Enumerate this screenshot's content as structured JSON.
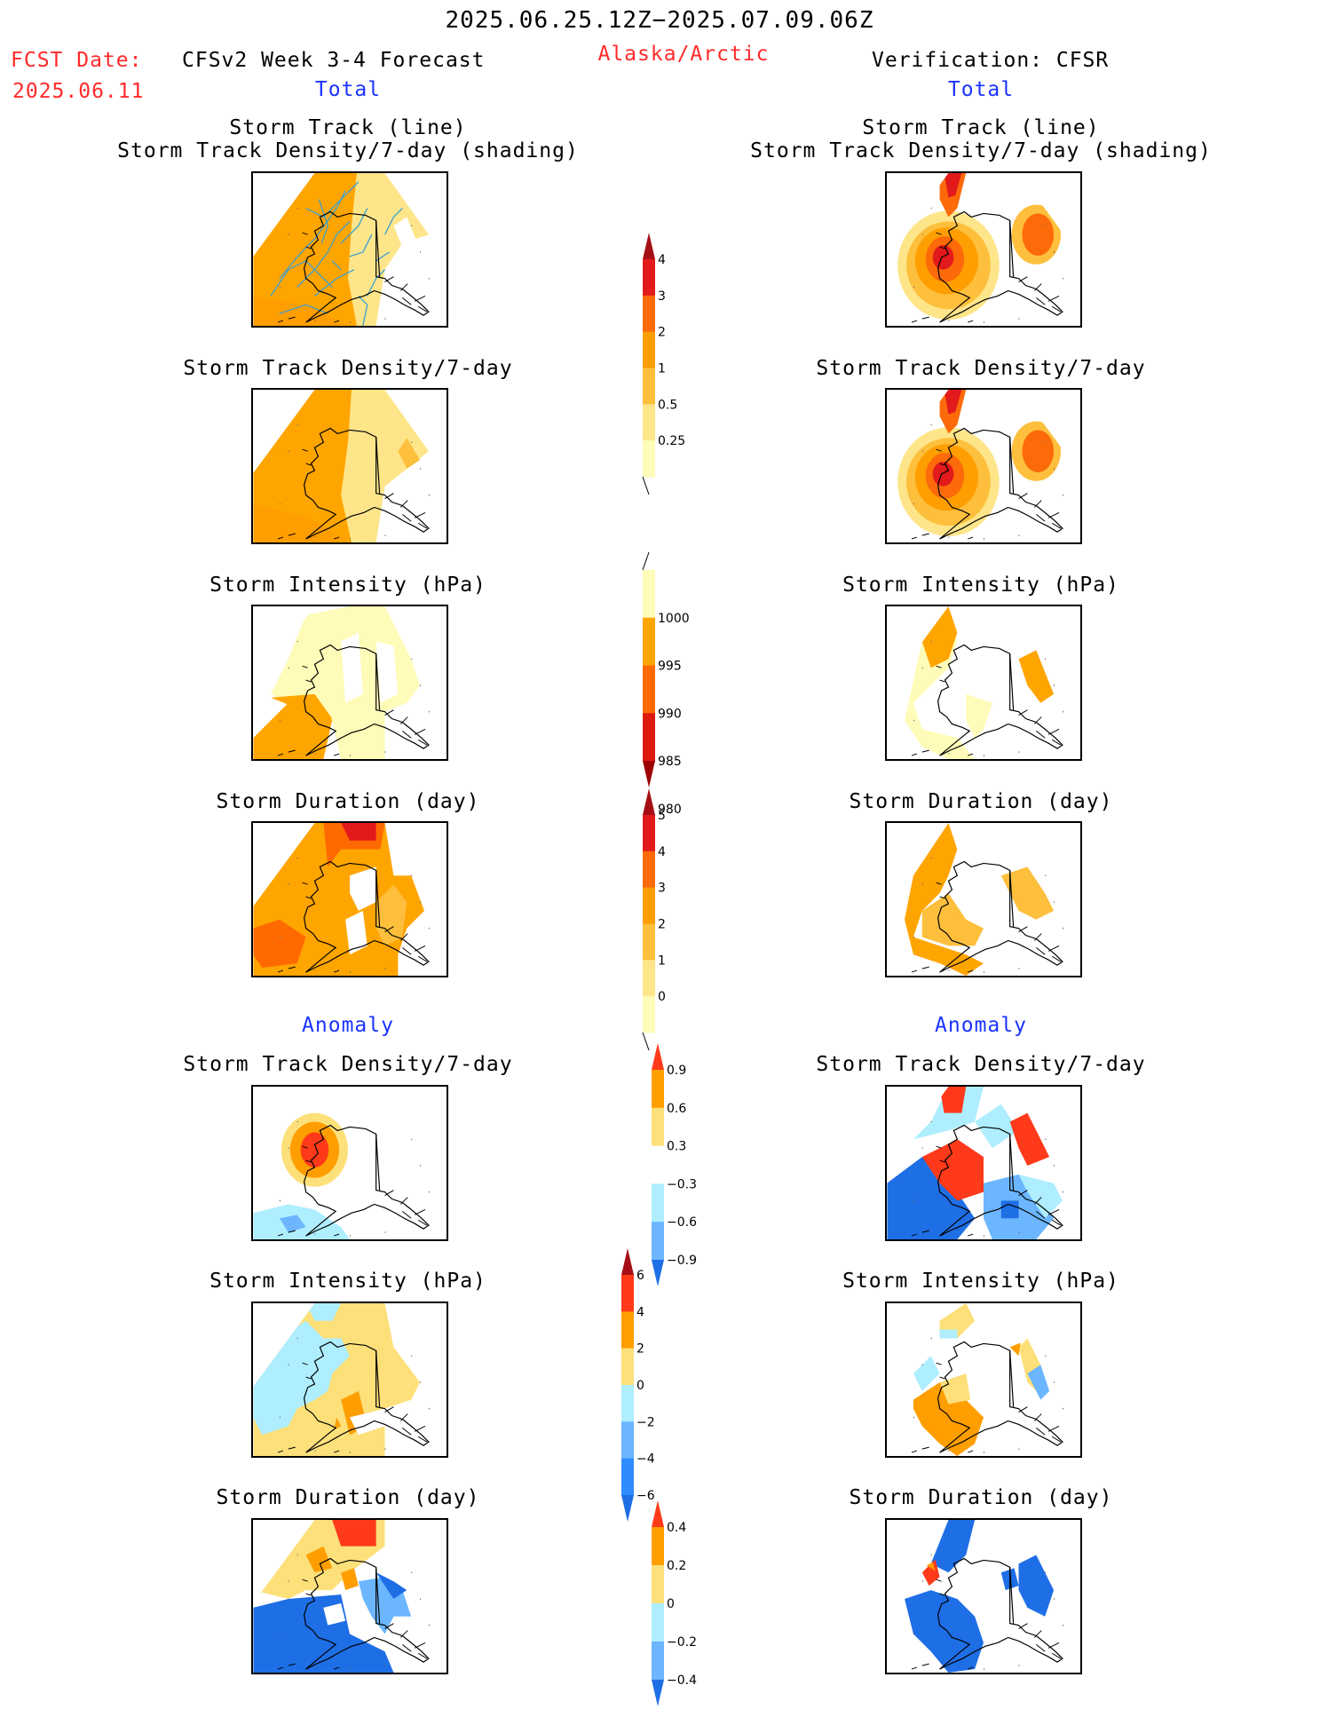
{
  "header": {
    "period": "2025.06.25.12Z−2025.07.09.06Z",
    "fcst_label": "FCST Date:",
    "fcst_date": "2025.06.11",
    "model": "CFSv2 Week 3-4 Forecast",
    "region": "Alaska/Arctic",
    "verification": "Verification: CFSR"
  },
  "sections": {
    "total_left": "Total",
    "total_right": "Total",
    "anomaly_left": "Anomaly",
    "anomaly_right": "Anomaly"
  },
  "panel_titles": {
    "track_line": "Storm Track (line)",
    "track_shading": "Storm Track Density/7-day (shading)",
    "density": "Storm Track Density/7-day",
    "intensity": "Storm Intensity (hPa)",
    "duration": "Storm Duration (day)"
  },
  "colorbars": {
    "density_total": {
      "labels": [
        "4",
        "3",
        "2",
        "1",
        "0.5",
        "0.25"
      ],
      "colors": [
        "#a50f15",
        "#e31a1c",
        "#fc6a0a",
        "#ff9e00",
        "#fdbf3c",
        "#fee58a",
        "#fffbb8"
      ]
    },
    "intensity_total": {
      "labels": [
        "1000",
        "995",
        "990",
        "985",
        "980"
      ],
      "colors": [
        "#fffbb8",
        "#ffa500",
        "#ff6a00",
        "#dd1a10",
        "#9e0000"
      ]
    },
    "duration_total": {
      "labels": [
        "5",
        "4",
        "3",
        "2",
        "1",
        "0"
      ],
      "colors": [
        "#a50f15",
        "#e31a1c",
        "#fc6a0a",
        "#ff9e00",
        "#fdbf3c",
        "#fee58a",
        "#fffbb8"
      ]
    },
    "density_anom": {
      "labels": [
        "0.9",
        "0.6",
        "0.3",
        "−0.3",
        "−0.6",
        "−0.9"
      ],
      "colors": [
        "#ff3a1a",
        "#ff9e00",
        "#fde07a",
        "#ffffff",
        "#aeeeff",
        "#6bb6ff",
        "#1e6ee6"
      ]
    },
    "intensity_anom": {
      "labels": [
        "6",
        "4",
        "2",
        "0",
        "−2",
        "−4",
        "−6"
      ],
      "colors": [
        "#a50f15",
        "#ff3a1a",
        "#ff9e00",
        "#fde07a",
        "#aeeeff",
        "#6bb6ff",
        "#2f8cff",
        "#1e6ee6"
      ]
    },
    "duration_anom": {
      "labels": [
        "0.4",
        "0.2",
        "0",
        "−0.2",
        "−0.4"
      ],
      "colors": [
        "#ff3a1a",
        "#ff9e00",
        "#fde07a",
        "#aeeeff",
        "#6bb6ff",
        "#1e6ee6"
      ]
    }
  },
  "colors": {
    "header_red": "#ff2a2a",
    "header_blue": "#1a33ff",
    "track_line": "#3aa0d0"
  }
}
